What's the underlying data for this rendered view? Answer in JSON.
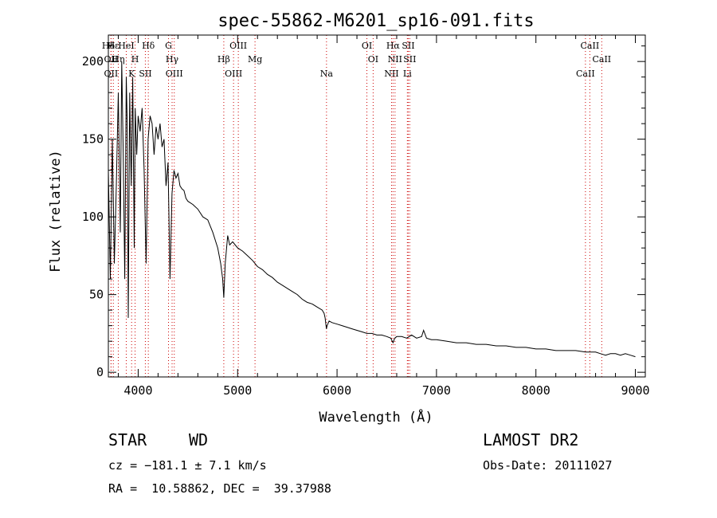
{
  "chart_data": {
    "type": "line",
    "title": "spec-55862-M6201_sp16-091.fits",
    "xlabel": "Wavelength (Å)",
    "ylabel": "Flux (relative)",
    "xlim": [
      3700,
      9100
    ],
    "ylim": [
      -3,
      217
    ],
    "xticks": [
      4000,
      5000,
      6000,
      7000,
      8000,
      9000
    ],
    "yticks": [
      0,
      50,
      100,
      150,
      200
    ],
    "grid": false,
    "line_color": "#000000",
    "marker_line_color": "#cc0000",
    "series": [
      {
        "x": [
          3700,
          3720,
          3740,
          3760,
          3780,
          3800,
          3820,
          3835,
          3850,
          3865,
          3880,
          3890,
          3900,
          3915,
          3930,
          3945,
          3960,
          3970,
          3985,
          4000,
          4020,
          4040,
          4060,
          4080,
          4100,
          4120,
          4140,
          4160,
          4180,
          4200,
          4220,
          4240,
          4260,
          4280,
          4300,
          4320,
          4340,
          4360,
          4380,
          4400,
          4420,
          4440,
          4460,
          4480,
          4500,
          4550,
          4600,
          4650,
          4700,
          4750,
          4800,
          4830,
          4850,
          4861,
          4875,
          4900,
          4920,
          4950,
          5000,
          5050,
          5100,
          5150,
          5200,
          5250,
          5300,
          5350,
          5400,
          5450,
          5500,
          5550,
          5600,
          5650,
          5700,
          5750,
          5800,
          5850,
          5870,
          5880,
          5893,
          5900,
          5920,
          5950,
          6000,
          6050,
          6100,
          6150,
          6200,
          6250,
          6300,
          6350,
          6400,
          6450,
          6500,
          6540,
          6563,
          6580,
          6600,
          6650,
          6700,
          6750,
          6800,
          6850,
          6870,
          6900,
          6950,
          7000,
          7100,
          7200,
          7300,
          7400,
          7500,
          7600,
          7700,
          7800,
          7900,
          8000,
          8100,
          8200,
          8300,
          8400,
          8500,
          8600,
          8650,
          8700,
          8750,
          8800,
          8850,
          8900,
          8950,
          9000
        ],
        "y": [
          130,
          60,
          150,
          70,
          120,
          180,
          90,
          200,
          140,
          60,
          190,
          160,
          35,
          180,
          120,
          190,
          80,
          170,
          140,
          165,
          155,
          170,
          130,
          70,
          150,
          165,
          160,
          140,
          158,
          150,
          160,
          145,
          150,
          120,
          135,
          60,
          115,
          130,
          125,
          128,
          120,
          118,
          117,
          112,
          110,
          108,
          105,
          100,
          98,
          90,
          80,
          70,
          60,
          48,
          70,
          88,
          82,
          84,
          80,
          78,
          75,
          72,
          68,
          66,
          63,
          61,
          58,
          56,
          54,
          52,
          50,
          47,
          45,
          44,
          42,
          40,
          38,
          35,
          28,
          30,
          33,
          32,
          31,
          30,
          29,
          28,
          27,
          26,
          25,
          25,
          24,
          24,
          23,
          22,
          19,
          22,
          23,
          23,
          22,
          24,
          22,
          23,
          27,
          22,
          21,
          21,
          20,
          19,
          19,
          18,
          18,
          17,
          17,
          16,
          16,
          15,
          15,
          14,
          14,
          14,
          13,
          13,
          12,
          11,
          12,
          12,
          11,
          12,
          11,
          10
        ]
      }
    ],
    "lines": [
      {
        "label": "Hδ",
        "wavelength": 3700
      },
      {
        "label": "OII",
        "wavelength": 3727
      },
      {
        "label": "OII",
        "wavelength": 3727
      },
      {
        "label": "Hε",
        "wavelength": 3750
      },
      {
        "label": "Hη",
        "wavelength": 3800
      },
      {
        "label": "K",
        "wavelength": 3934
      },
      {
        "label": "HeI",
        "wavelength": 3880
      },
      {
        "label": "H",
        "wavelength": 3969
      },
      {
        "label": "SII",
        "wavelength": 4072
      },
      {
        "label": "Hδ",
        "wavelength": 4102
      },
      {
        "label": "Hγ",
        "wavelength": 4341
      },
      {
        "label": "OIII",
        "wavelength": 4363
      },
      {
        "label": "G",
        "wavelength": 4305
      },
      {
        "label": "Hβ",
        "wavelength": 4861
      },
      {
        "label": "OIII",
        "wavelength": 4959
      },
      {
        "label": "OIII",
        "wavelength": 5007
      },
      {
        "label": "Mg",
        "wavelength": 5175
      },
      {
        "label": "Na",
        "wavelength": 5894
      },
      {
        "label": "OI",
        "wavelength": 6300
      },
      {
        "label": "OI",
        "wavelength": 6363
      },
      {
        "label": "NII",
        "wavelength": 6548
      },
      {
        "label": "Hα",
        "wavelength": 6563
      },
      {
        "label": "NII",
        "wavelength": 6583
      },
      {
        "label": "Li",
        "wavelength": 6707
      },
      {
        "label": "SII",
        "wavelength": 6716
      },
      {
        "label": "SII",
        "wavelength": 6731
      },
      {
        "label": "CaII",
        "wavelength": 8498
      },
      {
        "label": "CaII",
        "wavelength": 8542
      },
      {
        "label": "CaII",
        "wavelength": 8662
      }
    ]
  },
  "info": {
    "class_label": "STAR",
    "subclass": "WD",
    "survey": "LAMOST DR2",
    "cz_line": "cz = −181.1 ± 7.1 km/s",
    "obs_date_line": "Obs-Date: 20111027",
    "radec_line": "RA =  10.58862, DEC =  39.37988"
  }
}
